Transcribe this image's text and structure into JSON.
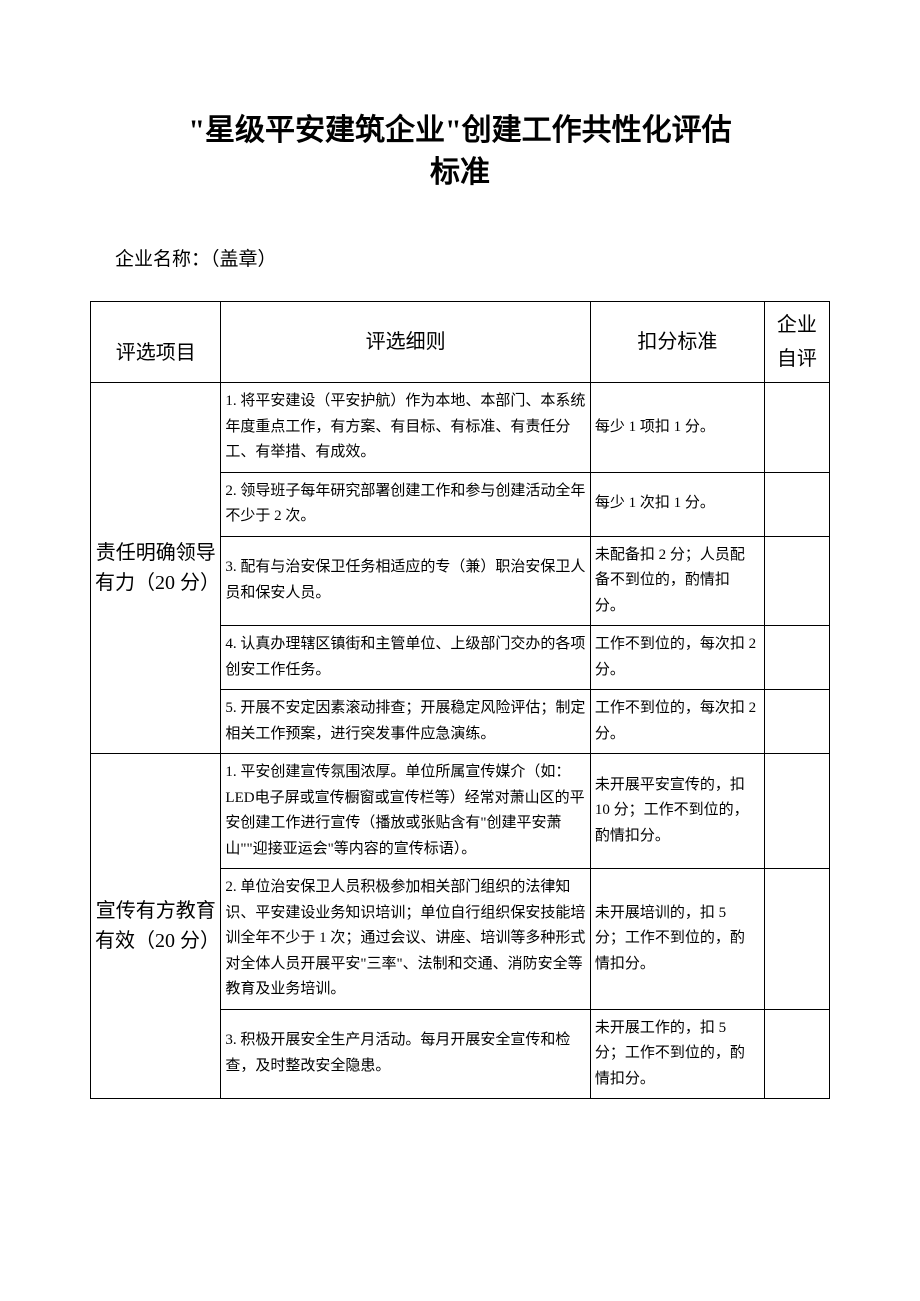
{
  "title_line1": "\"星级平安建筑企业\"创建工作共性化评估",
  "title_line2": "标准",
  "company_label": "企业名称：（盖章）",
  "headers": {
    "project": "评选项目",
    "detail": "评选细则",
    "deduct": "扣分标准",
    "self": "企业自评"
  },
  "sections": [
    {
      "category": "责任明确领导有力（20 分）",
      "rows": [
        {
          "detail": "1. 将平安建设（平安护航）作为本地、本部门、本系统年度重点工作，有方案、有目标、有标准、有责任分工、有举措、有成效。",
          "deduct": "每少 1 项扣 1 分。"
        },
        {
          "detail": "2. 领导班子每年研究部署创建工作和参与创建活动全年不少于 2 次。",
          "deduct": "每少 1 次扣 1 分。"
        },
        {
          "detail": "3. 配有与治安保卫任务相适应的专（兼）职治安保卫人员和保安人员。",
          "deduct": "未配备扣 2 分；人员配备不到位的，酌情扣分。"
        },
        {
          "detail": "4. 认真办理辖区镇街和主管单位、上级部门交办的各项创安工作任务。",
          "deduct": "工作不到位的，每次扣 2 分。"
        },
        {
          "detail": "5. 开展不安定因素滚动排查；开展稳定风险评估；制定相关工作预案，进行突发事件应急演练。",
          "deduct": "工作不到位的，每次扣 2 分。"
        }
      ]
    },
    {
      "category": "宣传有方教育有效（20 分）",
      "rows": [
        {
          "detail": "1. 平安创建宣传氛围浓厚。单位所属宣传媒介（如：LED电子屏或宣传橱窗或宣传栏等）经常对萧山区的平安创建工作进行宣传（播放或张贴含有\"创建平安萧山\"\"迎接亚运会\"等内容的宣传标语）。",
          "deduct": "未开展平安宣传的，扣 10 分；工作不到位的，酌情扣分。"
        },
        {
          "detail": "2. 单位治安保卫人员积极参加相关部门组织的法律知识、平安建设业务知识培训；单位自行组织保安技能培训全年不少于 1 次；通过会议、讲座、培训等多种形式对全体人员开展平安\"三率\"、法制和交通、消防安全等教育及业务培训。",
          "deduct": "未开展培训的，扣 5 分；工作不到位的，酌情扣分。"
        },
        {
          "detail": "3. 积极开展安全生产月活动。每月开展安全宣传和检查，及时整改安全隐患。",
          "deduct": "未开展工作的，扣 5 分；工作不到位的，酌情扣分。"
        }
      ]
    }
  ]
}
